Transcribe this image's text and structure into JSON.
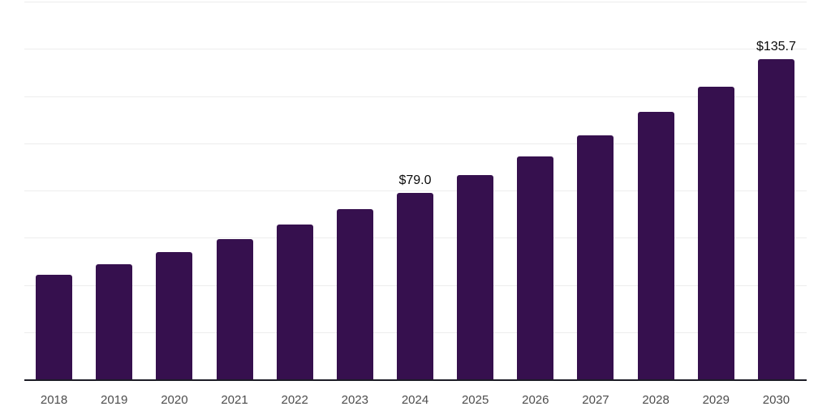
{
  "chart_data": {
    "type": "bar",
    "title": "",
    "xlabel": "",
    "ylabel": "",
    "categories": [
      "2018",
      "2019",
      "2020",
      "2021",
      "2022",
      "2023",
      "2024",
      "2025",
      "2026",
      "2027",
      "2028",
      "2029",
      "2030"
    ],
    "values": [
      44.2,
      48.9,
      53.8,
      59.5,
      65.5,
      72.2,
      79.0,
      86.4,
      94.6,
      103.4,
      113.3,
      124.0,
      135.7
    ],
    "data_labels": [
      "",
      "",
      "",
      "",
      "",
      "",
      "$79.0",
      "",
      "",
      "",
      "",
      "",
      "$135.7"
    ],
    "ylim": [
      0,
      160
    ],
    "grid_step": 20,
    "grid": true,
    "legend_position": "none",
    "y_tick_labels_visible": false,
    "colors": {
      "bar": "#36104e",
      "gridline": "#ededed",
      "axis_line": "#1c1c26",
      "tick_label": "#4d4d4d",
      "value_label": "#0b0b0b"
    }
  }
}
